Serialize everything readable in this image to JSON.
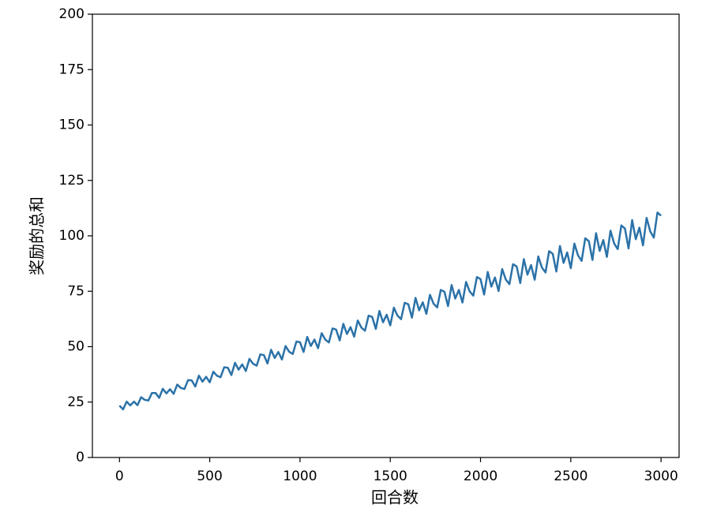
{
  "chart_data": {
    "type": "line",
    "xlabel": "回合数",
    "ylabel": "奖励的总和",
    "x": [
      0,
      20,
      40,
      60,
      80,
      100,
      120,
      140,
      160,
      180,
      200,
      220,
      240,
      260,
      280,
      300,
      320,
      340,
      360,
      380,
      400,
      420,
      440,
      460,
      480,
      500,
      520,
      540,
      560,
      580,
      600,
      620,
      640,
      660,
      680,
      700,
      720,
      740,
      760,
      780,
      800,
      820,
      840,
      860,
      880,
      900,
      920,
      940,
      960,
      980,
      1000,
      1020,
      1040,
      1060,
      1080,
      1100,
      1120,
      1140,
      1160,
      1180,
      1200,
      1220,
      1240,
      1260,
      1280,
      1300,
      1320,
      1340,
      1360,
      1380,
      1400,
      1420,
      1440,
      1460,
      1480,
      1500,
      1520,
      1540,
      1560,
      1580,
      1600,
      1620,
      1640,
      1660,
      1680,
      1700,
      1720,
      1740,
      1760,
      1780,
      1800,
      1820,
      1840,
      1860,
      1880,
      1900,
      1920,
      1940,
      1960,
      1980,
      2000,
      2020,
      2040,
      2060,
      2080,
      2100,
      2120,
      2140,
      2160,
      2180,
      2200,
      2220,
      2240,
      2260,
      2280,
      2300,
      2320,
      2340,
      2360,
      2380,
      2400,
      2420,
      2440,
      2460,
      2480,
      2500,
      2520,
      2540,
      2560,
      2580,
      2600,
      2620,
      2640,
      2660,
      2680,
      2700,
      2720,
      2740,
      2760,
      2780,
      2800,
      2820,
      2840,
      2860,
      2880,
      2900,
      2920,
      2940,
      2960,
      2980,
      3000
    ],
    "series": [
      {
        "color": "#2b72a8",
        "values": [
          23.4,
          21.7,
          25.2,
          23.5,
          25.2,
          23.6,
          27.2,
          26.0,
          25.7,
          29.1,
          29.1,
          26.9,
          31.0,
          28.9,
          30.8,
          28.7,
          32.9,
          31.4,
          30.9,
          34.9,
          34.8,
          32.0,
          36.9,
          34.2,
          36.4,
          33.9,
          38.7,
          36.9,
          36.2,
          40.7,
          40.5,
          37.2,
          42.7,
          39.6,
          42.0,
          39.0,
          44.5,
          42.3,
          41.4,
          46.5,
          46.2,
          42.4,
          48.6,
          44.9,
          47.6,
          44.2,
          50.3,
          47.7,
          46.7,
          52.3,
          52.0,
          47.6,
          54.4,
          50.3,
          53.2,
          49.3,
          56.1,
          53.2,
          51.9,
          58.2,
          57.7,
          52.8,
          60.3,
          55.7,
          58.8,
          54.5,
          61.8,
          58.6,
          57.2,
          64.0,
          63.4,
          58.0,
          66.1,
          61.0,
          64.4,
          59.6,
          67.6,
          64.0,
          62.4,
          69.8,
          69.1,
          63.1,
          72.0,
          66.4,
          70.0,
          64.8,
          73.4,
          69.4,
          67.7,
          75.6,
          74.8,
          68.3,
          77.8,
          71.7,
          75.6,
          69.9,
          79.2,
          74.9,
          73.0,
          81.4,
          80.5,
          73.5,
          83.7,
          77.1,
          81.2,
          75.1,
          85.0,
          80.3,
          78.2,
          87.2,
          86.2,
          78.7,
          89.5,
          82.5,
          86.8,
          80.2,
          90.7,
          85.7,
          83.5,
          93.1,
          91.9,
          83.9,
          95.4,
          87.8,
          92.5,
          85.4,
          96.5,
          91.2,
          88.7,
          98.9,
          97.6,
          89.1,
          101.2,
          93.2,
          98.1,
          90.5,
          102.3,
          96.6,
          94.0,
          104.7,
          103.3,
          94.3,
          107.1,
          98.5,
          103.7,
          95.7,
          108.1,
          102.0,
          99.2,
          110.5,
          109.1
        ]
      }
    ],
    "xlim": [
      -150,
      3100
    ],
    "xticks": [
      0,
      500,
      1000,
      1500,
      2000,
      2500,
      3000
    ],
    "ylim": [
      0,
      200
    ],
    "yticks": [
      0,
      25,
      50,
      75,
      100,
      125,
      150,
      175,
      200
    ]
  }
}
